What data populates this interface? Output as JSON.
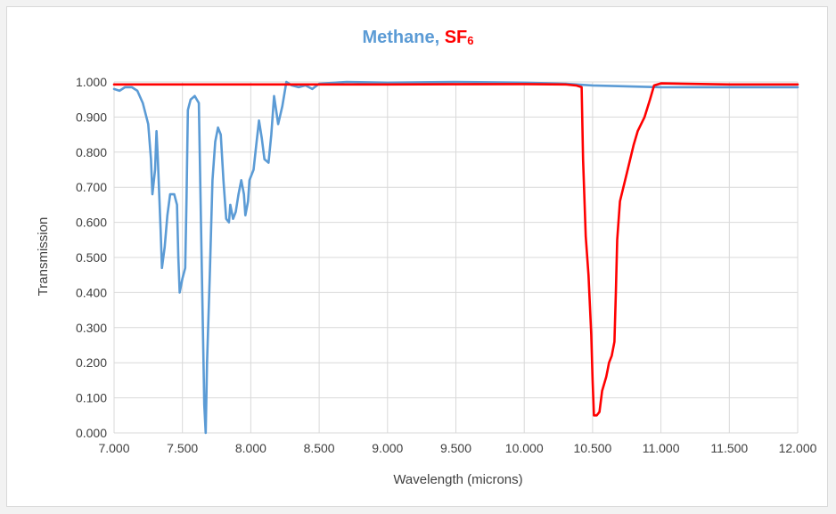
{
  "chart_data": {
    "type": "line",
    "title": {
      "parts": [
        {
          "text": "Methane",
          "color": "#5b9bd5"
        },
        {
          "text": ", ",
          "color": "#5b9bd5"
        },
        {
          "text": "SF",
          "color": "#ff0000"
        },
        {
          "text": "6",
          "color": "#ff0000",
          "subscript": true
        }
      ]
    },
    "xlabel": "Wavelength (microns)",
    "ylabel": "Transmission",
    "xlim": [
      7.0,
      12.0
    ],
    "ylim": [
      0.0,
      1.0
    ],
    "x_ticks": [
      "7.000",
      "7.500",
      "8.000",
      "8.500",
      "9.000",
      "9.500",
      "10.000",
      "10.500",
      "11.000",
      "11.500",
      "12.000"
    ],
    "y_ticks": [
      "0.000",
      "0.100",
      "0.200",
      "0.300",
      "0.400",
      "0.500",
      "0.600",
      "0.700",
      "0.800",
      "0.900",
      "1.000"
    ],
    "grid": true,
    "series": [
      {
        "name": "Methane",
        "color": "#5b9bd5",
        "points": [
          [
            7.0,
            0.98
          ],
          [
            7.04,
            0.975
          ],
          [
            7.08,
            0.985
          ],
          [
            7.13,
            0.985
          ],
          [
            7.17,
            0.975
          ],
          [
            7.21,
            0.94
          ],
          [
            7.25,
            0.88
          ],
          [
            7.27,
            0.78
          ],
          [
            7.28,
            0.68
          ],
          [
            7.3,
            0.75
          ],
          [
            7.31,
            0.86
          ],
          [
            7.32,
            0.78
          ],
          [
            7.34,
            0.58
          ],
          [
            7.35,
            0.47
          ],
          [
            7.37,
            0.53
          ],
          [
            7.39,
            0.62
          ],
          [
            7.41,
            0.68
          ],
          [
            7.44,
            0.68
          ],
          [
            7.46,
            0.65
          ],
          [
            7.47,
            0.5
          ],
          [
            7.48,
            0.4
          ],
          [
            7.5,
            0.44
          ],
          [
            7.52,
            0.47
          ],
          [
            7.53,
            0.67
          ],
          [
            7.54,
            0.92
          ],
          [
            7.56,
            0.95
          ],
          [
            7.59,
            0.96
          ],
          [
            7.62,
            0.94
          ],
          [
            7.64,
            0.5
          ],
          [
            7.66,
            0.08
          ],
          [
            7.67,
            0.0
          ],
          [
            7.68,
            0.2
          ],
          [
            7.7,
            0.45
          ],
          [
            7.72,
            0.72
          ],
          [
            7.74,
            0.83
          ],
          [
            7.76,
            0.87
          ],
          [
            7.78,
            0.85
          ],
          [
            7.8,
            0.72
          ],
          [
            7.82,
            0.61
          ],
          [
            7.84,
            0.6
          ],
          [
            7.85,
            0.65
          ],
          [
            7.87,
            0.61
          ],
          [
            7.89,
            0.63
          ],
          [
            7.91,
            0.68
          ],
          [
            7.93,
            0.72
          ],
          [
            7.95,
            0.68
          ],
          [
            7.96,
            0.62
          ],
          [
            7.98,
            0.66
          ],
          [
            7.99,
            0.72
          ],
          [
            8.02,
            0.75
          ],
          [
            8.04,
            0.82
          ],
          [
            8.06,
            0.89
          ],
          [
            8.08,
            0.84
          ],
          [
            8.1,
            0.78
          ],
          [
            8.13,
            0.77
          ],
          [
            8.15,
            0.85
          ],
          [
            8.17,
            0.96
          ],
          [
            8.2,
            0.88
          ],
          [
            8.23,
            0.93
          ],
          [
            8.26,
            1.0
          ],
          [
            8.3,
            0.99
          ],
          [
            8.35,
            0.985
          ],
          [
            8.4,
            0.99
          ],
          [
            8.45,
            0.98
          ],
          [
            8.5,
            0.995
          ],
          [
            8.7,
            1.0
          ],
          [
            9.0,
            0.998
          ],
          [
            9.5,
            1.0
          ],
          [
            10.0,
            0.998
          ],
          [
            10.3,
            0.995
          ],
          [
            10.5,
            0.99
          ],
          [
            11.0,
            0.985
          ],
          [
            11.5,
            0.985
          ],
          [
            12.0,
            0.985
          ]
        ]
      },
      {
        "name": "SF6",
        "color": "#ff0000",
        "points": [
          [
            7.0,
            0.993
          ],
          [
            8.0,
            0.993
          ],
          [
            9.0,
            0.993
          ],
          [
            10.0,
            0.994
          ],
          [
            10.3,
            0.993
          ],
          [
            10.38,
            0.99
          ],
          [
            10.42,
            0.985
          ],
          [
            10.43,
            0.78
          ],
          [
            10.45,
            0.56
          ],
          [
            10.47,
            0.45
          ],
          [
            10.49,
            0.28
          ],
          [
            10.5,
            0.15
          ],
          [
            10.51,
            0.05
          ],
          [
            10.53,
            0.05
          ],
          [
            10.55,
            0.06
          ],
          [
            10.57,
            0.12
          ],
          [
            10.6,
            0.16
          ],
          [
            10.61,
            0.18
          ],
          [
            10.62,
            0.2
          ],
          [
            10.64,
            0.22
          ],
          [
            10.66,
            0.26
          ],
          [
            10.67,
            0.4
          ],
          [
            10.68,
            0.55
          ],
          [
            10.7,
            0.66
          ],
          [
            10.75,
            0.74
          ],
          [
            10.8,
            0.82
          ],
          [
            10.83,
            0.86
          ],
          [
            10.88,
            0.9
          ],
          [
            10.92,
            0.95
          ],
          [
            10.95,
            0.99
          ],
          [
            11.0,
            0.996
          ],
          [
            11.5,
            0.993
          ],
          [
            12.0,
            0.993
          ]
        ]
      }
    ]
  }
}
